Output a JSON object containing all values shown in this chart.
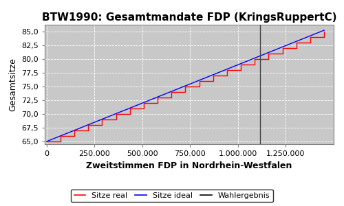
{
  "title": "BTW1990: Gesamtmandate FDP (KringsRuppertC)",
  "xlabel": "Zweitstimmen FDP in Nordrhein-Westfalen",
  "ylabel": "Gesamtsitze",
  "background_color": "#c8c8c8",
  "ylim": [
    64.5,
    86.2
  ],
  "xlim": [
    -10000,
    1500000
  ],
  "wahlergebnis_x": 1115000,
  "x_end": 1450000,
  "y_ideal_start": 65.0,
  "y_ideal_end": 85.2,
  "seats_start": 65,
  "seats_end": 85,
  "xticks": [
    0,
    250000,
    500000,
    750000,
    1000000,
    1250000
  ],
  "xtick_labels": [
    "0",
    "250.000",
    "500.000",
    "750.000",
    "1.000.000",
    "1.250.000"
  ],
  "yticks": [
    65.0,
    67.5,
    70.0,
    72.5,
    75.0,
    77.5,
    80.0,
    82.5,
    85.0
  ],
  "legend_labels": [
    "Sitze real",
    "Sitze ideal",
    "Wahlergebnis"
  ],
  "legend_colors": [
    "red",
    "blue",
    "black"
  ],
  "title_fontsize": 11,
  "label_fontsize": 9,
  "tick_fontsize": 8,
  "legend_fontsize": 8
}
